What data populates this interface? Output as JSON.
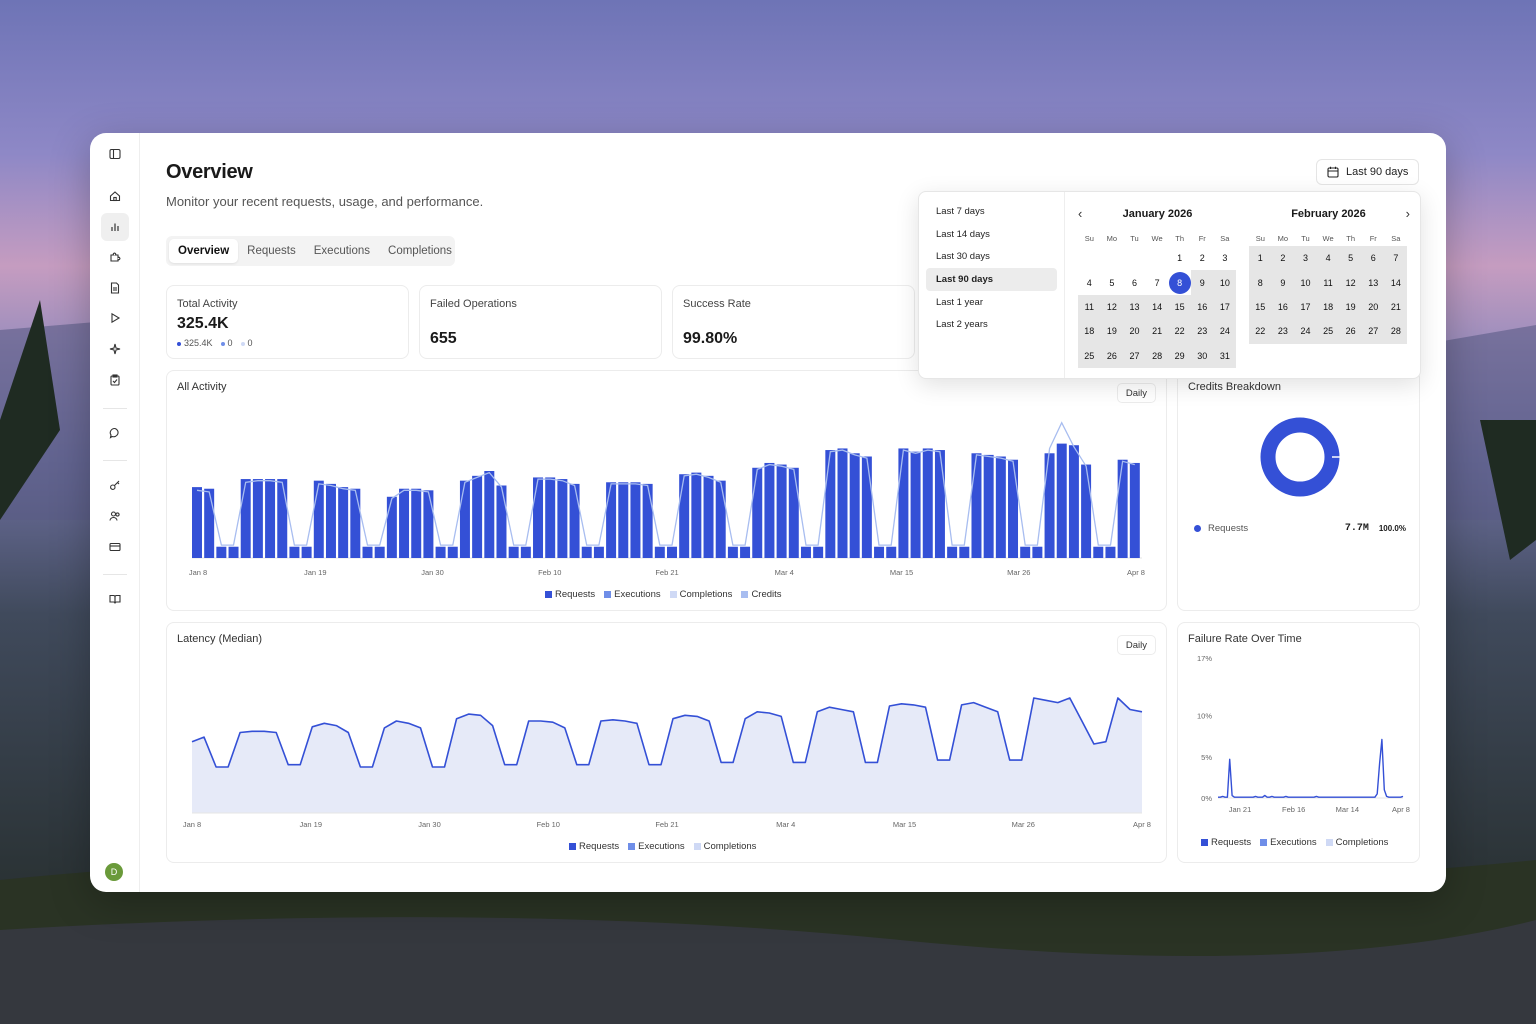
{
  "page": {
    "title": "Overview",
    "subtitle": "Monitor your recent requests, usage, and performance."
  },
  "sidebar": {
    "icons": [
      "sidebar-toggle-icon",
      "home-icon",
      "analytics-icon",
      "puzzle-icon",
      "document-icon",
      "play-icon",
      "sparkles-icon",
      "clipboard-icon",
      "chat-icon",
      "key-icon",
      "users-icon",
      "credit-card-icon",
      "book-icon"
    ],
    "avatar_letter": "D",
    "avatar_color": "#6a9a3a"
  },
  "tabs": [
    "Overview",
    "Requests",
    "Executions",
    "Completions"
  ],
  "date_range": {
    "label": "Last 90 days"
  },
  "stats": {
    "total_activity": {
      "label": "Total Activity",
      "value": "325.4K",
      "sub": [
        "325.4K",
        "0",
        "0"
      ]
    },
    "failed_operations": {
      "label": "Failed Operations",
      "value": "655"
    },
    "success_rate": {
      "label": "Success Rate",
      "value": "99.80%"
    }
  },
  "colors": {
    "requests": "#3450d6",
    "executions": "#6f8ee8",
    "completions": "#cfd9f5",
    "credits": "#a8bdf0",
    "area_fill": "#e6eaf8"
  },
  "all_activity": {
    "title": "All Activity",
    "interval": "Daily",
    "legend": [
      "Requests",
      "Executions",
      "Completions",
      "Credits"
    ]
  },
  "credits_breakdown": {
    "title": "Credits Breakdown",
    "items": [
      {
        "label": "Requests",
        "value": "7.7M",
        "percent": "100.0%"
      }
    ]
  },
  "latency": {
    "title": "Latency (Median)",
    "interval": "Daily",
    "legend": [
      "Requests",
      "Executions",
      "Completions"
    ]
  },
  "failure_rate": {
    "title": "Failure Rate Over Time",
    "legend": [
      "Requests",
      "Executions",
      "Completions"
    ]
  },
  "date_picker": {
    "presets": [
      "Last 7 days",
      "Last 14 days",
      "Last 30 days",
      "Last 90 days",
      "Last 1 year",
      "Last 2 years"
    ],
    "active_preset": "Last 90 days",
    "weekdays": [
      "Su",
      "Mo",
      "Tu",
      "We",
      "Th",
      "Fr",
      "Sa"
    ],
    "months": [
      {
        "title": "January 2026",
        "first_weekday": 4,
        "days": 31,
        "selected": 8,
        "range_start": 8
      },
      {
        "title": "February 2026",
        "first_weekday": 0,
        "days": 28,
        "range_start": 1
      }
    ]
  },
  "chart_data": [
    {
      "type": "bar",
      "title": "All Activity",
      "x_ticks": [
        "Jan 8",
        "Jan 19",
        "Jan 30",
        "Feb 10",
        "Feb 21",
        "Mar 4",
        "Mar 15",
        "Mar 26",
        "Apr 8"
      ],
      "series": [
        {
          "name": "Requests",
          "values": [
            4400,
            4300,
            700,
            700,
            4900,
            4900,
            4900,
            4900,
            700,
            700,
            4800,
            4600,
            4400,
            4300,
            700,
            700,
            3800,
            4300,
            4300,
            4200,
            700,
            700,
            4800,
            5100,
            5400,
            4500,
            700,
            700,
            5000,
            5000,
            4900,
            4600,
            700,
            700,
            4700,
            4700,
            4700,
            4600,
            700,
            700,
            5200,
            5300,
            5100,
            4800,
            700,
            700,
            5600,
            5900,
            5800,
            5600,
            700,
            700,
            6700,
            6800,
            6500,
            6300,
            700,
            700,
            6800,
            6600,
            6800,
            6700,
            700,
            700,
            6500,
            6400,
            6300,
            6100,
            700,
            700,
            6500,
            7100,
            7000,
            5800,
            700,
            700,
            6100,
            5900
          ]
        },
        {
          "name": "Credits",
          "values": [
            4200,
            4100,
            800,
            800,
            4700,
            4800,
            4800,
            4700,
            800,
            800,
            4600,
            4500,
            4300,
            4200,
            800,
            800,
            3700,
            4200,
            4200,
            4100,
            800,
            800,
            4700,
            5000,
            5300,
            4400,
            800,
            800,
            4900,
            4900,
            4800,
            4500,
            800,
            800,
            4600,
            4600,
            4600,
            4500,
            800,
            800,
            5100,
            5200,
            5000,
            4700,
            800,
            800,
            5500,
            5800,
            5700,
            5500,
            800,
            800,
            6600,
            6700,
            6400,
            6200,
            800,
            800,
            6700,
            6500,
            6700,
            6600,
            800,
            800,
            6400,
            6300,
            6200,
            6000,
            800,
            800,
            6800,
            8400,
            6900,
            5700,
            800,
            800,
            6000,
            5800
          ]
        }
      ],
      "ylim": [
        0,
        9000
      ]
    },
    {
      "type": "pie",
      "title": "Credits Breakdown",
      "categories": [
        "Requests"
      ],
      "values": [
        7700000
      ]
    },
    {
      "type": "area",
      "title": "Latency (Median)",
      "x_ticks": [
        "Jan 8",
        "Jan 19",
        "Jan 30",
        "Feb 10",
        "Feb 21",
        "Mar 4",
        "Mar 15",
        "Mar 26",
        "Apr 8"
      ],
      "series": [
        {
          "name": "Requests",
          "values": [
            62,
            66,
            40,
            40,
            70,
            71,
            71,
            70,
            42,
            42,
            75,
            78,
            76,
            70,
            40,
            40,
            74,
            80,
            78,
            74,
            40,
            40,
            82,
            86,
            85,
            76,
            42,
            42,
            80,
            80,
            79,
            74,
            42,
            42,
            80,
            81,
            80,
            78,
            42,
            42,
            82,
            85,
            84,
            80,
            44,
            44,
            82,
            88,
            87,
            84,
            44,
            44,
            88,
            92,
            90,
            88,
            44,
            44,
            93,
            95,
            94,
            92,
            46,
            46,
            94,
            96,
            92,
            88,
            46,
            46,
            100,
            98,
            96,
            100,
            80,
            60,
            62,
            100,
            90,
            88
          ]
        }
      ],
      "ylim": [
        0,
        120
      ]
    },
    {
      "type": "line",
      "title": "Failure Rate Over Time",
      "x_ticks": [
        "Jan 21",
        "Feb 16",
        "Mar 14",
        "Apr 8"
      ],
      "y_ticks": [
        "0%",
        "5%",
        "10%",
        "17%"
      ],
      "series": [
        {
          "name": "Requests",
          "values": [
            0.1,
            0.1,
            0.2,
            0.1,
            0.1,
            4.7,
            0.3,
            0.1,
            0.1,
            0.1,
            0.1,
            0.1,
            0.1,
            0.1,
            0.1,
            0.1,
            0.2,
            0.1,
            0.1,
            0.1,
            0.3,
            0.1,
            0.1,
            0.2,
            0.1,
            0.1,
            0.1,
            0.1,
            0.1,
            0.2,
            0.1,
            0.1,
            0.1,
            0.1,
            0.1,
            0.1,
            0.1,
            0.1,
            0.1,
            0.1,
            0.1,
            0.1,
            0.2,
            0.1,
            0.1,
            0.1,
            0.1,
            0.1,
            0.1,
            0.1,
            0.1,
            0.1,
            0.1,
            0.1,
            0.1,
            0.1,
            0.1,
            0.1,
            0.1,
            0.1,
            0.1,
            0.1,
            0.1,
            0.1,
            0.1,
            0.1,
            0.1,
            0.1,
            0.5,
            4.2,
            7.1,
            1.0,
            0.2,
            0.1,
            0.1,
            0.1,
            0.1,
            0.1,
            0.1,
            0.2
          ]
        }
      ],
      "ylim": [
        0,
        17
      ]
    }
  ]
}
